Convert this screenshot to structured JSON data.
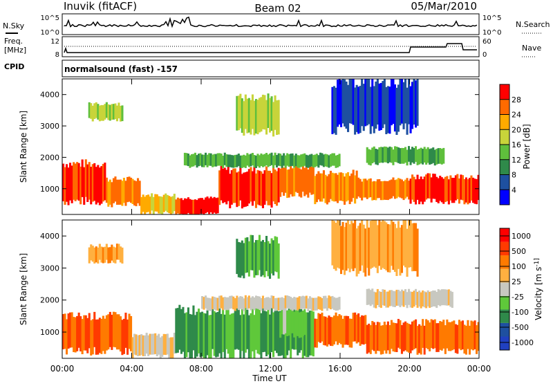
{
  "header": {
    "station": "Inuvik (fitACF)",
    "beam": "Beam 02",
    "date": "05/Mar/2010"
  },
  "top_panels": {
    "nsky_label": "N.Sky",
    "nsky_ticks": [
      "10^5",
      "10^0"
    ],
    "nsearch_label": "N.Search",
    "nsearch_ticks": [
      "10^5",
      "10^0"
    ],
    "freq_label_line1": "Freq.",
    "freq_label_line2": "[MHz]",
    "freq_ticks": [
      "12",
      "8"
    ],
    "nave_label": "Nave",
    "nave_ticks": [
      "60",
      "0"
    ],
    "cpid_label": "CPID",
    "cpid_value": "normalsound (fast) -157"
  },
  "colors": {
    "scale": [
      "#0000ff",
      "#1e50a0",
      "#2f8a4a",
      "#5fbf3c",
      "#c8d43a",
      "#ffaa00",
      "#ff6a00",
      "#ff0000"
    ],
    "velocity_scale": [
      "#ff0000",
      "#ff3a00",
      "#ff7a00",
      "#ffb040",
      "#c8c8c0",
      "#5fc83a",
      "#2f8a4a",
      "#1e50a0",
      "#2040c0"
    ]
  },
  "chart_data": [
    {
      "type": "heatmap",
      "title": "",
      "xlabel": "",
      "ylabel": "Slant Range [km]",
      "x_ticks": [
        "00:00",
        "04:00",
        "08:00",
        "12:00",
        "16:00",
        "20:00",
        "00:00"
      ],
      "y_ticks": [
        "1000",
        "2000",
        "3000",
        "4000"
      ],
      "xlim_hours": [
        0,
        24
      ],
      "ylim_km": [
        180,
        4500
      ],
      "colorbar_label": "Power [dB]",
      "colorbar_ticks": [
        "4",
        "8",
        "12",
        "16",
        "20",
        "24",
        "28"
      ],
      "bands": [
        {
          "t0": 0.0,
          "t1": 2.5,
          "r0": 600,
          "r1": 1800,
          "level": 7
        },
        {
          "t0": 2.5,
          "t1": 4.5,
          "r0": 500,
          "r1": 1300,
          "level": 6
        },
        {
          "t0": 4.5,
          "t1": 6.5,
          "r0": 250,
          "r1": 800,
          "level": 5
        },
        {
          "t0": 6.5,
          "t1": 9.0,
          "r0": 200,
          "r1": 700,
          "level": 7
        },
        {
          "t0": 9.0,
          "t1": 12.5,
          "r0": 500,
          "r1": 1600,
          "level": 7
        },
        {
          "t0": 12.5,
          "t1": 14.5,
          "r0": 800,
          "r1": 1700,
          "level": 6
        },
        {
          "t0": 14.5,
          "t1": 17.0,
          "r0": 600,
          "r1": 1500,
          "level": 6
        },
        {
          "t0": 17.0,
          "t1": 20.0,
          "r0": 700,
          "r1": 1300,
          "level": 6
        },
        {
          "t0": 20.0,
          "t1": 24.0,
          "r0": 600,
          "r1": 1400,
          "level": 7
        },
        {
          "t0": 7.0,
          "t1": 16.0,
          "r0": 1700,
          "r1": 2100,
          "level": 3
        },
        {
          "t0": 17.5,
          "t1": 22.0,
          "r0": 1800,
          "r1": 2300,
          "level": 3
        },
        {
          "t0": 1.5,
          "t1": 3.5,
          "r0": 3200,
          "r1": 3700,
          "level": 4
        },
        {
          "t0": 10.0,
          "t1": 12.5,
          "r0": 2800,
          "r1": 3900,
          "level": 4
        },
        {
          "t0": 15.5,
          "t1": 20.5,
          "r0": 2900,
          "r1": 4400,
          "level": 1
        }
      ]
    },
    {
      "type": "heatmap",
      "title": "",
      "xlabel": "Time UT",
      "ylabel": "Slant Range [km]",
      "x_ticks": [
        "00:00",
        "04:00",
        "08:00",
        "12:00",
        "16:00",
        "20:00",
        "00:00"
      ],
      "y_ticks": [
        "1000",
        "2000",
        "3000",
        "4000"
      ],
      "xlim_hours": [
        0,
        24
      ],
      "ylim_km": [
        180,
        4500
      ],
      "colorbar_label": "Velocity [m s^-1]",
      "colorbar_ticks": [
        "1000",
        "500",
        "100",
        "25",
        "-25",
        "-100",
        "-500",
        "-1000"
      ],
      "bands": [
        {
          "t0": 0.0,
          "t1": 4.0,
          "r0": 400,
          "r1": 1500,
          "level": 2
        },
        {
          "t0": 4.0,
          "t1": 6.5,
          "r0": 250,
          "r1": 900,
          "level": 4
        },
        {
          "t0": 6.5,
          "t1": 14.5,
          "r0": 300,
          "r1": 1700,
          "level": 6
        },
        {
          "t0": 12.5,
          "t1": 14.0,
          "r0": 900,
          "r1": 1700,
          "level": 5
        },
        {
          "t0": 14.5,
          "t1": 17.5,
          "r0": 600,
          "r1": 1500,
          "level": 2
        },
        {
          "t0": 17.5,
          "t1": 24.0,
          "r0": 400,
          "r1": 1300,
          "level": 2
        },
        {
          "t0": 8.0,
          "t1": 16.0,
          "r0": 1700,
          "r1": 2100,
          "level": 4
        },
        {
          "t0": 17.5,
          "t1": 22.5,
          "r0": 1800,
          "r1": 2300,
          "level": 4
        },
        {
          "t0": 1.5,
          "t1": 3.5,
          "r0": 3200,
          "r1": 3700,
          "level": 3
        },
        {
          "t0": 10.0,
          "t1": 12.5,
          "r0": 2800,
          "r1": 3900,
          "level": 6
        },
        {
          "t0": 15.5,
          "t1": 20.5,
          "r0": 2900,
          "r1": 4400,
          "level": 3
        }
      ]
    }
  ]
}
